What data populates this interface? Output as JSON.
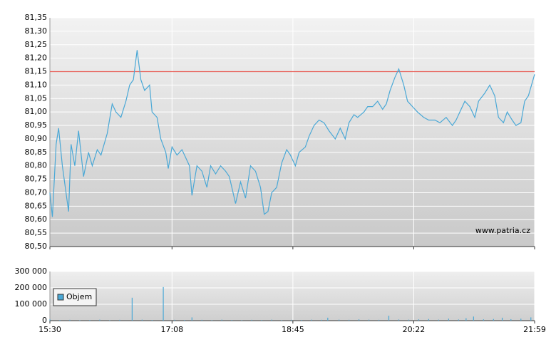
{
  "chart_data": [
    {
      "type": "line",
      "watermark": "www.patria.cz",
      "xlim": [
        "15:30",
        "21:59"
      ],
      "xticks": [
        "15:30",
        "17:08",
        "18:45",
        "20:22",
        "21:59"
      ],
      "ylim": [
        80.5,
        81.35
      ],
      "yticks": [
        {
          "value": 80.5,
          "label": "80,50"
        },
        {
          "value": 80.55,
          "label": "80,55"
        },
        {
          "value": 80.6,
          "label": "80,60"
        },
        {
          "value": 80.65,
          "label": "80,65"
        },
        {
          "value": 80.7,
          "label": "80,70"
        },
        {
          "value": 80.75,
          "label": "80,75"
        },
        {
          "value": 80.8,
          "label": "80,80"
        },
        {
          "value": 80.85,
          "label": "80,85"
        },
        {
          "value": 80.9,
          "label": "80,90"
        },
        {
          "value": 80.95,
          "label": "80,95"
        },
        {
          "value": 81.0,
          "label": "81,00"
        },
        {
          "value": 81.05,
          "label": "81,05"
        },
        {
          "value": 81.1,
          "label": "81,10"
        },
        {
          "value": 81.15,
          "label": "81,15"
        },
        {
          "value": 81.2,
          "label": "81,20"
        },
        {
          "value": 81.25,
          "label": "81,25"
        },
        {
          "value": 81.3,
          "label": "81,30"
        },
        {
          "value": 81.35,
          "label": "81,35"
        }
      ],
      "grid": true,
      "reference_line": {
        "value": 81.15,
        "color": "#e8605a"
      },
      "x": [
        "15:30",
        "15:32",
        "15:35",
        "15:37",
        "15:40",
        "15:45",
        "15:47",
        "15:50",
        "15:53",
        "15:57",
        "16:01",
        "16:04",
        "16:08",
        "16:11",
        "16:16",
        "16:20",
        "16:23",
        "16:27",
        "16:31",
        "16:34",
        "16:37",
        "16:40",
        "16:43",
        "16:46",
        "16:50",
        "16:52",
        "16:56",
        "16:59",
        "17:03",
        "17:05",
        "17:08",
        "17:12",
        "17:16",
        "17:20",
        "17:22",
        "17:24",
        "17:28",
        "17:32",
        "17:36",
        "17:39",
        "17:43",
        "17:47",
        "17:51",
        "17:54",
        "17:59",
        "18:03",
        "18:07",
        "18:11",
        "18:15",
        "18:19",
        "18:22",
        "18:25",
        "18:28",
        "18:32",
        "18:36",
        "18:40",
        "18:43",
        "18:47",
        "18:50",
        "18:55",
        "18:58",
        "19:02",
        "19:06",
        "19:10",
        "19:14",
        "19:19",
        "19:23",
        "19:27",
        "19:30",
        "19:34",
        "19:37",
        "19:42",
        "19:45",
        "19:49",
        "19:53",
        "19:57",
        "20:00",
        "20:03",
        "20:07",
        "20:10",
        "20:14",
        "20:17",
        "20:21",
        "20:25",
        "20:30",
        "20:34",
        "20:39",
        "20:43",
        "20:48",
        "20:53",
        "20:56",
        "20:59",
        "21:03",
        "21:07",
        "21:11",
        "21:14",
        "21:19",
        "21:23",
        "21:27",
        "21:30",
        "21:34",
        "21:37",
        "21:41",
        "21:44",
        "21:48",
        "21:51",
        "21:54",
        "21:59"
      ],
      "series": [
        {
          "color": "#4aa8d6",
          "values": [
            80.7,
            80.61,
            80.88,
            80.94,
            80.8,
            80.63,
            80.88,
            80.8,
            80.93,
            80.76,
            80.85,
            80.8,
            80.86,
            80.84,
            80.92,
            81.03,
            81.0,
            80.98,
            81.04,
            81.1,
            81.12,
            81.23,
            81.12,
            81.08,
            81.1,
            81.0,
            80.98,
            80.9,
            80.85,
            80.79,
            80.87,
            80.84,
            80.86,
            80.82,
            80.8,
            80.69,
            80.8,
            80.78,
            80.72,
            80.8,
            80.77,
            80.8,
            80.78,
            80.76,
            80.66,
            80.74,
            80.68,
            80.8,
            80.78,
            80.72,
            80.62,
            80.63,
            80.7,
            80.72,
            80.81,
            80.86,
            80.84,
            80.8,
            80.85,
            80.87,
            80.91,
            80.95,
            80.97,
            80.96,
            80.93,
            80.9,
            80.94,
            80.9,
            80.96,
            80.99,
            80.98,
            81.0,
            81.02,
            81.02,
            81.04,
            81.01,
            81.03,
            81.08,
            81.13,
            81.16,
            81.1,
            81.04,
            81.02,
            81.0,
            80.98,
            80.97,
            80.97,
            80.96,
            80.98,
            80.95,
            80.97,
            81.0,
            81.04,
            81.02,
            80.98,
            81.04,
            81.07,
            81.1,
            81.06,
            80.98,
            80.96,
            81.0,
            80.97,
            80.95,
            80.96,
            81.04,
            81.06,
            81.14
          ]
        }
      ]
    },
    {
      "type": "bar",
      "xlim": [
        "15:30",
        "21:59"
      ],
      "xticks": [
        "15:30",
        "17:08",
        "18:45",
        "20:22",
        "21:59"
      ],
      "ylim": [
        0,
        300000
      ],
      "yticks": [
        0,
        {
          "value": 100000,
          "label": "100 000"
        },
        {
          "value": 200000,
          "label": "200 000"
        },
        {
          "value": 300000,
          "label": "300 000"
        }
      ],
      "grid": true,
      "legend": "top-left",
      "x": [
        "15:30",
        "15:38",
        "15:46",
        "15:54",
        "16:02",
        "16:10",
        "16:18",
        "16:26",
        "16:36",
        "16:44",
        "16:52",
        "17:01",
        "17:10",
        "17:18",
        "17:24",
        "17:32",
        "17:40",
        "17:48",
        "17:56",
        "18:04",
        "18:12",
        "18:20",
        "18:28",
        "18:36",
        "18:44",
        "18:52",
        "19:00",
        "19:08",
        "19:13",
        "19:22",
        "19:30",
        "19:38",
        "19:46",
        "19:54",
        "20:02",
        "20:10",
        "20:18",
        "20:26",
        "20:34",
        "20:42",
        "20:50",
        "20:58",
        "21:04",
        "21:10",
        "21:18",
        "21:26",
        "21:33",
        "21:40",
        "21:48",
        "21:56"
      ],
      "series": [
        {
          "name": "Objem",
          "color": "#4aa8d6",
          "values": [
            8000,
            4000,
            5000,
            3000,
            4000,
            6000,
            3000,
            5000,
            140000,
            6000,
            4000,
            205000,
            5000,
            4000,
            20000,
            5000,
            3000,
            6000,
            4000,
            3000,
            5000,
            4000,
            6000,
            3000,
            5000,
            4000,
            6000,
            5000,
            18000,
            6000,
            5000,
            8000,
            6000,
            5000,
            30000,
            7000,
            6000,
            8000,
            10000,
            6000,
            12000,
            7000,
            15000,
            25000,
            8000,
            10000,
            18000,
            9000,
            12000,
            20000
          ]
        }
      ]
    }
  ]
}
